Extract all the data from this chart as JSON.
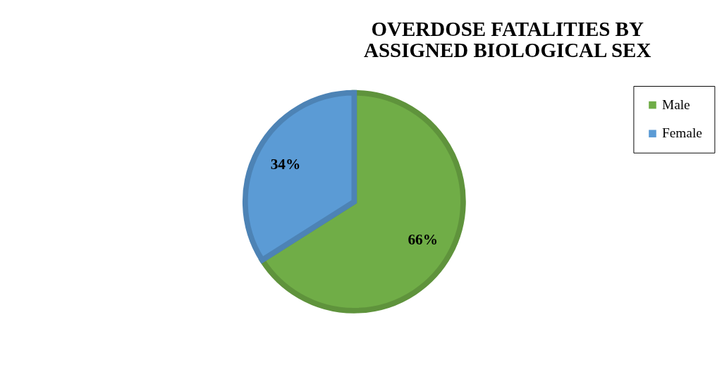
{
  "chart_data": {
    "type": "pie",
    "title": "OVERDOSE FATALITIES BY ASSIGNED BIOLOGICAL SEX",
    "categories": [
      "Male",
      "Female"
    ],
    "values": [
      66,
      34
    ],
    "colors": [
      "#70ad47",
      "#5b9bd5"
    ],
    "value_labels": [
      "66%",
      "34%"
    ],
    "legend": "right"
  }
}
